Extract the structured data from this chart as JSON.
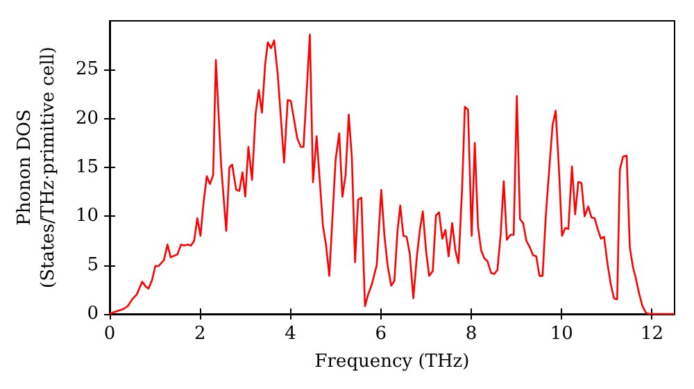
{
  "chart_data": {
    "type": "line",
    "xlabel": "Frequency (THz)",
    "ylabel": "Phonon DOS\n(States/THz·primitive cell)",
    "xlim": [
      0,
      12.5
    ],
    "xticks": [
      0,
      2,
      4,
      6,
      8,
      10,
      12
    ],
    "ylim": [
      0,
      30
    ],
    "yticks": [
      0,
      5,
      10,
      15,
      20,
      25
    ],
    "marker": "none",
    "line_style": "solid",
    "x": [
      0,
      0.1,
      0.3,
      0.4,
      0.5,
      0.6,
      0.72,
      0.8,
      0.86,
      0.94,
      1.01,
      1.08,
      1.2,
      1.28,
      1.35,
      1.5,
      1.58,
      1.65,
      1.72,
      1.8,
      1.87,
      1.94,
      2.01,
      2.08,
      2.15,
      2.22,
      2.29,
      2.35,
      2.47,
      2.58,
      2.65,
      2.71,
      2.8,
      2.87,
      2.94,
      3.0,
      3.07,
      3.15,
      3.23,
      3.3,
      3.37,
      3.44,
      3.5,
      3.57,
      3.64,
      3.72,
      3.86,
      3.94,
      4.01,
      4.15,
      4.23,
      4.29,
      4.43,
      4.5,
      4.58,
      4.72,
      4.79,
      4.86,
      5.0,
      5.08,
      5.15,
      5.22,
      5.29,
      5.36,
      5.43,
      5.5,
      5.57,
      5.65,
      5.72,
      5.8,
      5.91,
      6.01,
      6.08,
      6.15,
      6.23,
      6.3,
      6.37,
      6.43,
      6.5,
      6.57,
      6.64,
      6.72,
      6.8,
      6.87,
      6.93,
      7.0,
      7.07,
      7.15,
      7.22,
      7.29,
      7.36,
      7.43,
      7.5,
      7.58,
      7.65,
      7.72,
      7.8,
      7.86,
      7.93,
      8.01,
      8.08,
      8.15,
      8.22,
      8.29,
      8.36,
      8.44,
      8.51,
      8.58,
      8.65,
      8.72,
      8.79,
      8.87,
      8.94,
      9.01,
      9.08,
      9.15,
      9.22,
      9.3,
      9.37,
      9.44,
      9.51,
      9.58,
      9.65,
      9.73,
      9.8,
      9.87,
      9.94,
      10.01,
      10.08,
      10.15,
      10.23,
      10.3,
      10.37,
      10.44,
      10.51,
      10.59,
      10.66,
      10.73,
      10.8,
      10.87,
      10.94,
      11.02,
      11.09,
      11.16,
      11.23,
      11.29,
      11.36,
      11.44,
      11.51,
      11.58,
      11.65,
      11.72,
      11.79,
      11.87,
      11.94,
      12.5
    ],
    "series": [
      {
        "color": "#ff0000",
        "values": [
          0,
          0.2,
          0.5,
          0.8,
          1.5,
          2.0,
          3.3,
          2.8,
          2.6,
          3.5,
          4.9,
          4.9,
          5.5,
          7.1,
          5.8,
          6.1,
          7.1,
          7.0,
          7.1,
          7.0,
          7.5,
          9.8,
          8.0,
          11.5,
          14.1,
          13.3,
          14.2,
          26.0,
          15,
          8.5,
          15,
          15.3,
          12.7,
          12.6,
          14.5,
          12.0,
          17.1,
          13.7,
          20.5,
          22.9,
          20.6,
          25.5,
          27.8,
          27.2,
          28.0,
          24.5,
          15.5,
          21.9,
          21.8,
          18,
          17.1,
          17.1,
          28.6,
          13.5,
          18.2,
          9,
          7,
          3.9,
          15.8,
          18.5,
          12,
          14.2,
          20.4,
          16,
          5.3,
          11.7,
          11.9,
          0.8,
          2,
          3,
          5,
          12.7,
          8,
          5,
          2.9,
          3.4,
          8.5,
          11.1,
          8,
          7.9,
          6.2,
          1.6,
          6,
          8.8,
          10.5,
          6.5,
          3.9,
          4.4,
          10.1,
          10.4,
          7.7,
          8.6,
          5.9,
          9.3,
          6.5,
          5.2,
          13,
          21.2,
          20.9,
          8,
          17.5,
          9,
          6.5,
          5.7,
          5.4,
          4.2,
          4.1,
          4.5,
          8,
          13.6,
          7.6,
          8.1,
          8.1,
          22.3,
          9.7,
          9.3,
          7.5,
          6.8,
          6.0,
          5.9,
          3.9,
          3.9,
          10,
          15,
          19.3,
          20.8,
          15,
          8,
          8.8,
          8.7,
          15.1,
          10.2,
          13.5,
          13.4,
          10,
          11,
          9.9,
          9.8,
          8.7,
          7.7,
          7.9,
          5,
          3,
          1.6,
          1.5,
          14.8,
          16.1,
          16.2,
          6.8,
          4.8,
          3.5,
          2,
          0.8,
          0.1,
          0,
          0
        ]
      }
    ]
  }
}
